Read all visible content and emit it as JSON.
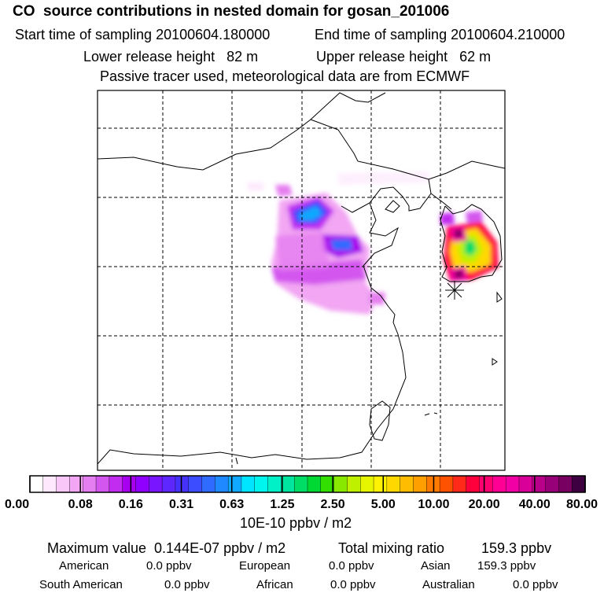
{
  "header": {
    "title": "CO  source contributions in nested domain for gosan_201006",
    "start_label": "Start time of sampling 20100604.180000",
    "end_label": "End time of sampling 20100604.210000",
    "lower_label": "Lower release height   82 m",
    "upper_label": "Upper release height   62 m",
    "tracer_note": "Passive tracer used, meteorological data are from ECMWF"
  },
  "colorbar": {
    "tick_labels": [
      "0.00",
      "0.08",
      "0.16",
      "0.31",
      "0.63",
      "1.25",
      "2.50",
      "5.00",
      "10.00",
      "20.00",
      "40.00",
      "80.00"
    ],
    "unit": "10E-10 ppbv / m2",
    "colors": [
      "#ffffff",
      "#fde8fd",
      "#f9c8f9",
      "#f2a6f3",
      "#e57ef0",
      "#d356ef",
      "#c22bf0",
      "#a800ee",
      "#8f00ff",
      "#7a15ff",
      "#5e27ff",
      "#4632ff",
      "#3b4dff",
      "#2f6bff",
      "#1f8aff",
      "#11a8ff",
      "#00e5ff",
      "#00f5ee",
      "#00f0c8",
      "#00e6a0",
      "#00dd66",
      "#00d833",
      "#33df00",
      "#88e800",
      "#bff000",
      "#e6f500",
      "#fff200",
      "#ffd800",
      "#ffbc00",
      "#ffa000",
      "#ff7a00",
      "#ff5200",
      "#ff2a1a",
      "#ff003c",
      "#ff0070",
      "#ff0095",
      "#f000a5",
      "#d80098",
      "#b8008a",
      "#98007a",
      "#780060",
      "#3e0040"
    ]
  },
  "stats": {
    "max_label": "Maximum value  0.144E-07 ppbv / m2",
    "total_label": "Total mixing ratio",
    "total_value": "159.3 ppbv",
    "american_label": "American",
    "american_value": "0.0 ppbv",
    "european_label": "European",
    "european_value": "0.0 ppbv",
    "asian_label": "Asian",
    "asian_value": "159.3 ppbv",
    "south_american_label": "South American",
    "south_american_value": "0.0 ppbv",
    "african_label": "African",
    "african_value": "0.0 ppbv",
    "australian_label": "Australian",
    "australian_value": "0.0 ppbv"
  }
}
